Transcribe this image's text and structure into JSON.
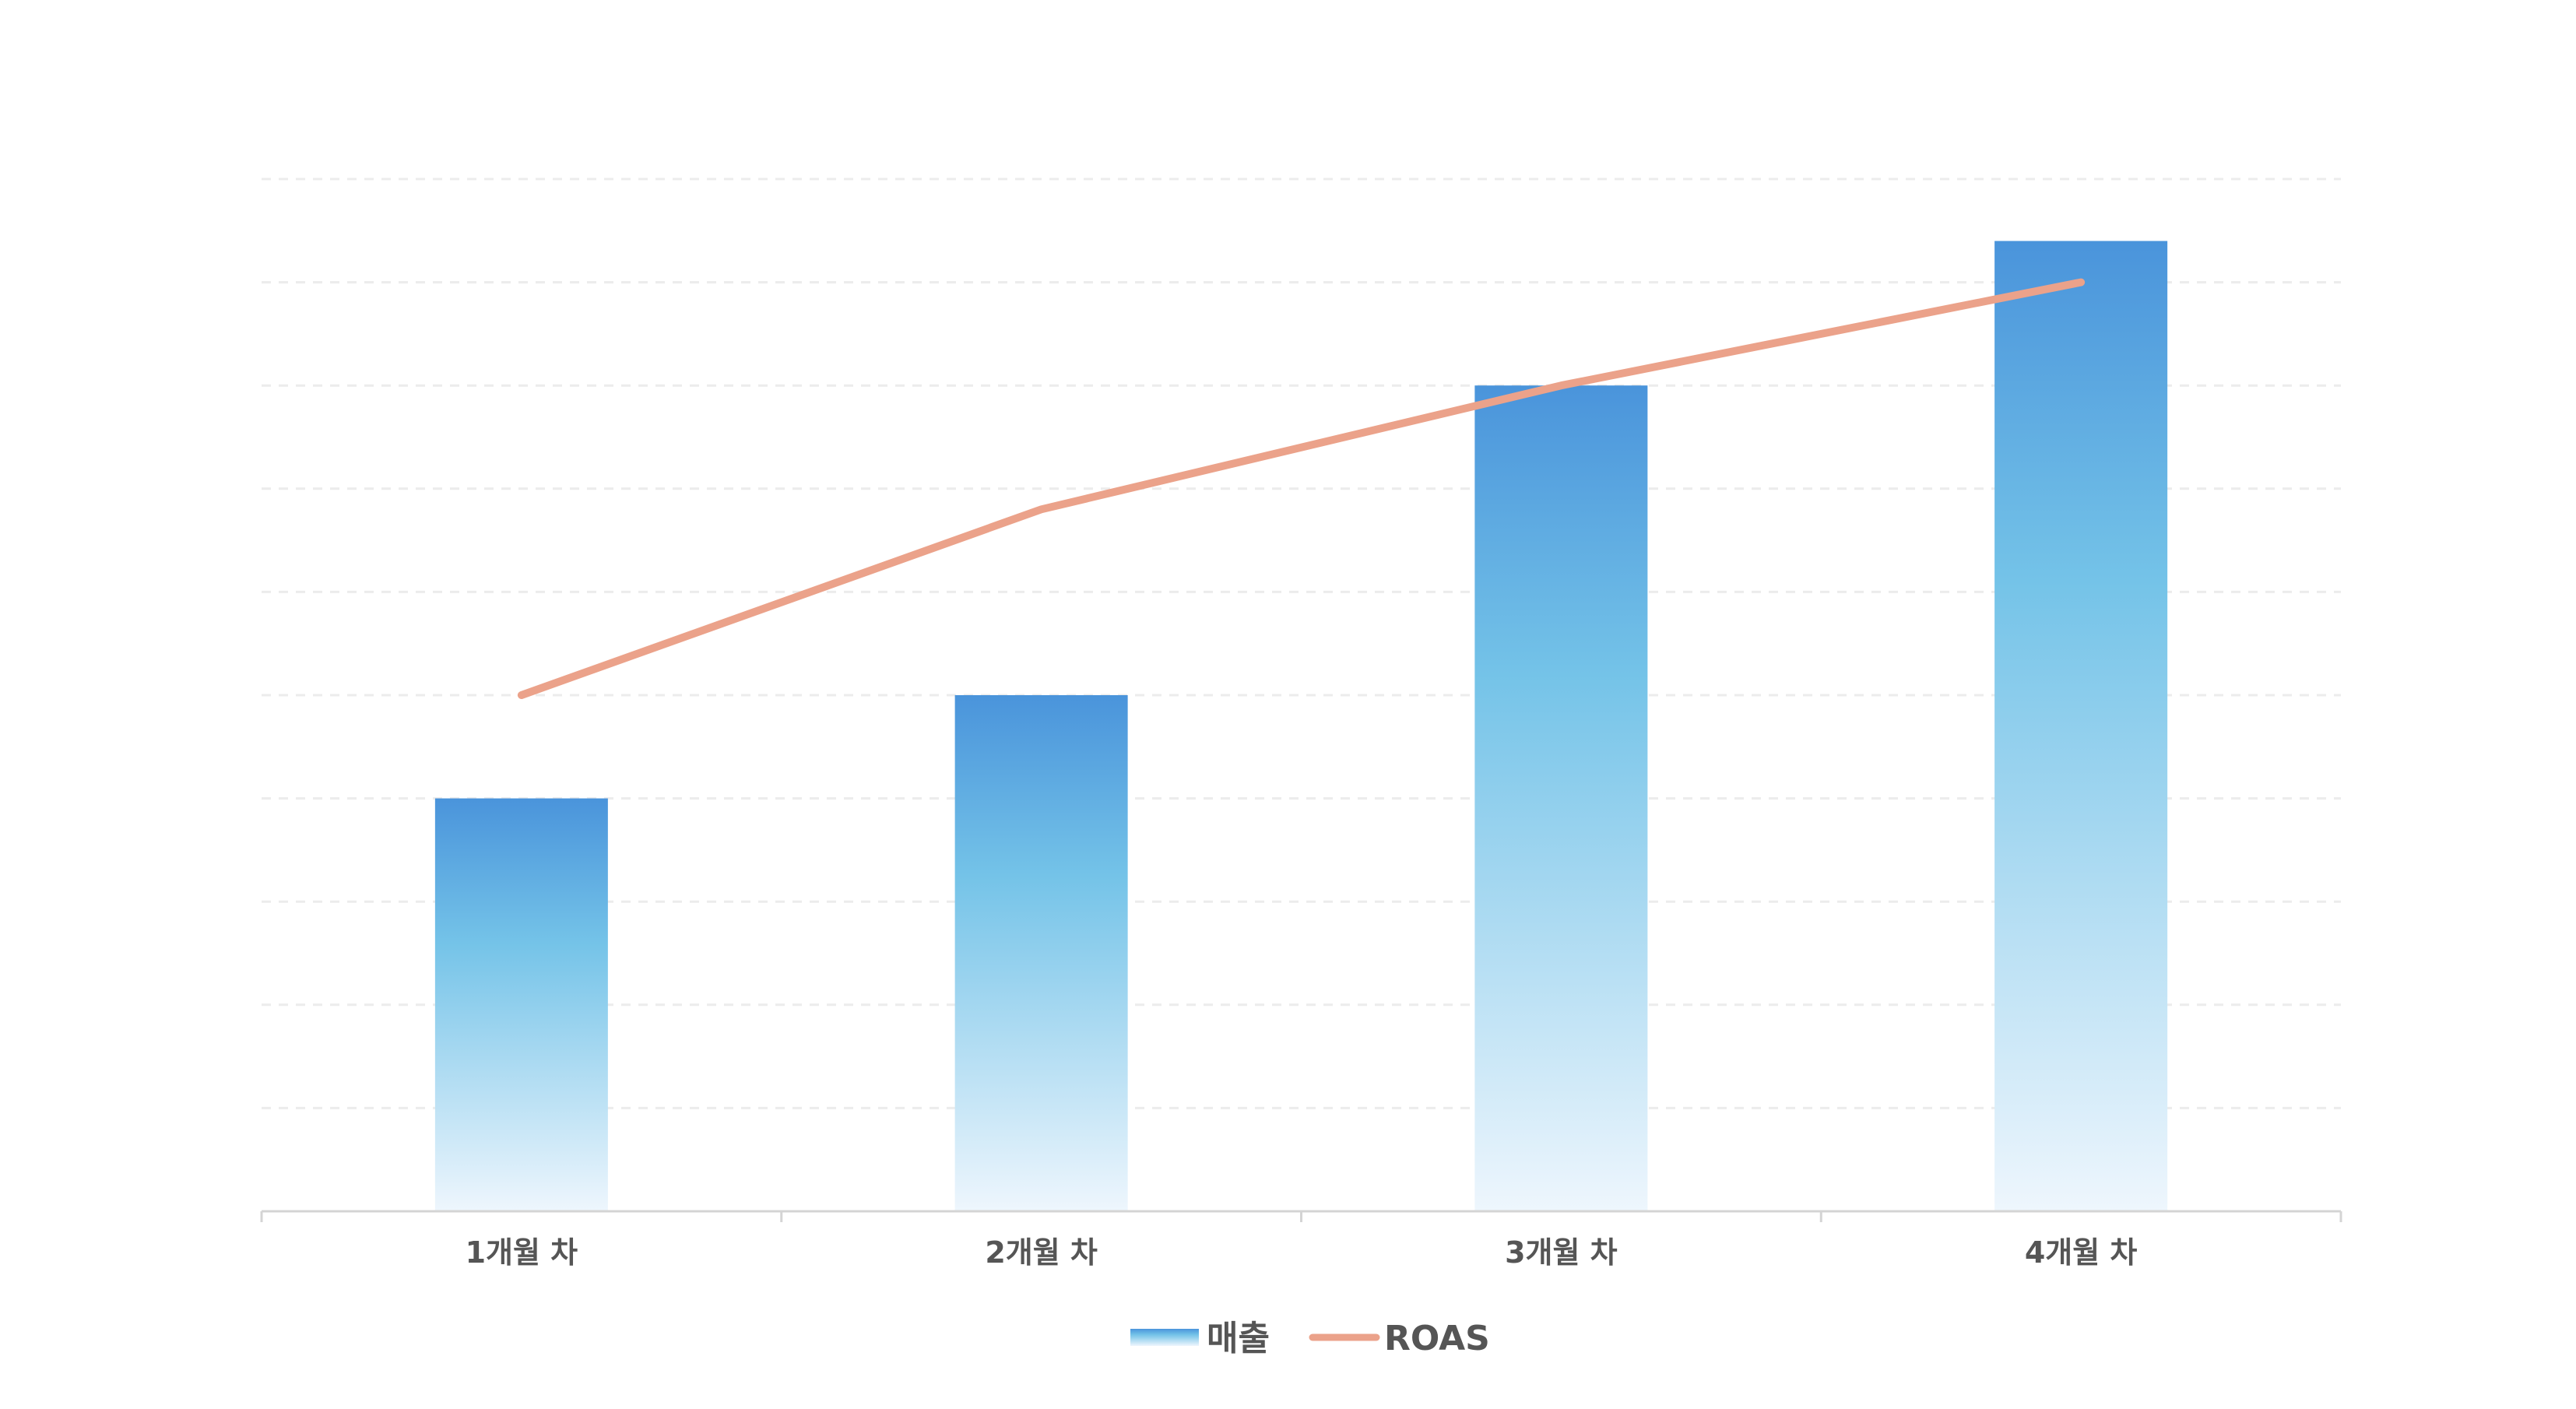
{
  "chart_data": {
    "type": "bar",
    "categories": [
      "1개월 차",
      "2개월 차",
      "3개월 차",
      "4개월 차"
    ],
    "series": [
      {
        "name": "매출",
        "type": "bar",
        "values": [
          40,
          50,
          80,
          94
        ],
        "color_top": "#4a94db",
        "color_mid": "#74c3e8",
        "color_bottom": "#eef6fd"
      },
      {
        "name": "ROAS",
        "type": "line",
        "values": [
          50,
          68,
          80,
          90
        ],
        "color": "#eba28a"
      }
    ],
    "ylim": [
      0,
      100
    ],
    "y_gridlines": [
      10,
      20,
      30,
      40,
      50,
      60,
      70,
      80,
      90,
      100
    ],
    "grid": true,
    "legend_position": "bottom-center"
  }
}
